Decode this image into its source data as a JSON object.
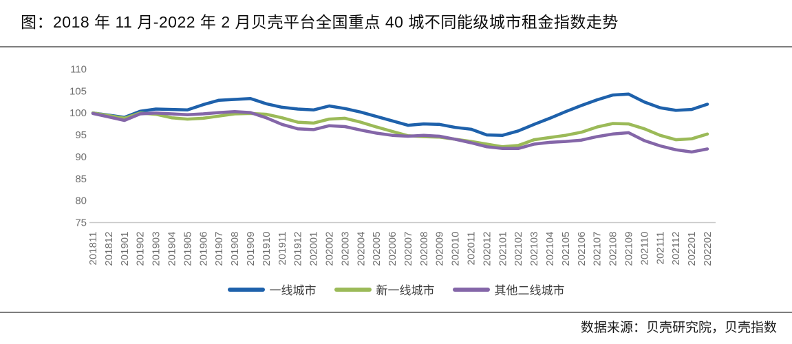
{
  "title": "图：2018 年 11 月-2022 年 2 月贝壳平台全国重点 40 城不同能级城市租金指数走势",
  "source": "数据来源：贝壳研究院，贝壳指数",
  "chart_data": {
    "type": "line",
    "title": "图：2018 年 11 月-2022 年 2 月贝壳平台全国重点 40 城不同能级城市租金指数走势",
    "xlabel": "",
    "ylabel": "",
    "ylim": [
      75,
      110
    ],
    "ytick_step": 5,
    "yticks": [
      75,
      80,
      85,
      90,
      95,
      100,
      105,
      110
    ],
    "grid": false,
    "legend_position": "bottom",
    "axis_text_color": "#6f6f6f",
    "axis_line_color": "#c9c9c9",
    "categories": [
      "201811",
      "201812",
      "201901",
      "201902",
      "201903",
      "201904",
      "201905",
      "201906",
      "201907",
      "201908",
      "201909",
      "201910",
      "201911",
      "201912",
      "202001",
      "202002",
      "202003",
      "202004",
      "202005",
      "202006",
      "202007",
      "202008",
      "202009",
      "202010",
      "202011",
      "202012",
      "202101",
      "202102",
      "202103",
      "202104",
      "202105",
      "202106",
      "202107",
      "202108",
      "202109",
      "202110",
      "202111",
      "202112",
      "202201",
      "202202"
    ],
    "series": [
      {
        "name": "一线城市",
        "color": "#1e61ab",
        "values": [
          100.0,
          99.5,
          99.0,
          100.4,
          100.9,
          100.8,
          100.7,
          101.9,
          102.9,
          103.1,
          103.3,
          102.1,
          101.3,
          100.9,
          100.7,
          101.6,
          101.0,
          100.2,
          99.2,
          98.2,
          97.2,
          97.5,
          97.4,
          96.7,
          96.3,
          95.0,
          94.9,
          95.9,
          97.4,
          98.8,
          100.3,
          101.7,
          103.0,
          104.1,
          104.3,
          102.5,
          101.2,
          100.6,
          100.8,
          102.0
        ]
      },
      {
        "name": "新一线城市",
        "color": "#9bba58",
        "values": [
          100.0,
          99.4,
          98.8,
          100.0,
          99.7,
          98.9,
          98.6,
          98.8,
          99.3,
          99.8,
          99.9,
          99.7,
          98.9,
          97.9,
          97.7,
          98.6,
          98.8,
          97.9,
          96.8,
          95.8,
          94.8,
          94.6,
          94.5,
          94.0,
          93.5,
          92.9,
          92.3,
          92.6,
          93.9,
          94.4,
          94.9,
          95.6,
          96.8,
          97.6,
          97.5,
          96.4,
          94.9,
          93.9,
          94.1,
          95.2
        ]
      },
      {
        "name": "其他二线城市",
        "color": "#8466a8",
        "values": [
          99.9,
          99.1,
          98.3,
          99.8,
          100.0,
          99.8,
          99.6,
          99.8,
          100.1,
          100.3,
          100.1,
          98.9,
          97.4,
          96.4,
          96.2,
          97.1,
          96.9,
          96.1,
          95.4,
          94.9,
          94.7,
          94.9,
          94.7,
          94.0,
          93.2,
          92.3,
          91.9,
          91.9,
          92.9,
          93.3,
          93.5,
          93.8,
          94.6,
          95.2,
          95.5,
          93.7,
          92.5,
          91.6,
          91.1,
          91.8
        ]
      }
    ]
  }
}
